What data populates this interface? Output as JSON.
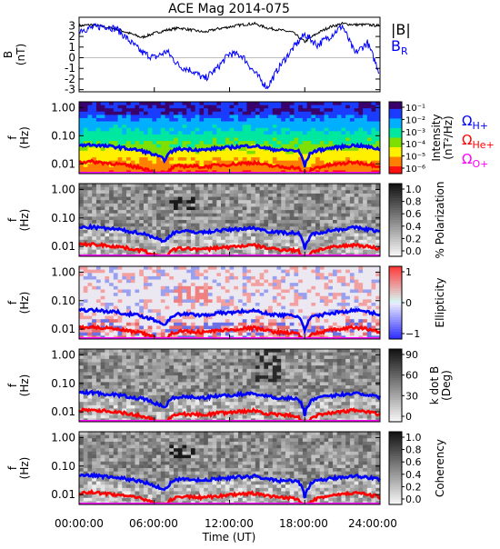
{
  "title": "ACE Mag 2014-075",
  "time_axis": {
    "label": "Time (UT)",
    "ticks": [
      "00:00:00",
      "06:00:00",
      "12:00:00",
      "18:00:00",
      "24:00:00"
    ],
    "range_hours": [
      0,
      24
    ]
  },
  "legend_top": {
    "b_mag": "|B|",
    "b_r_base": "B",
    "b_r_sub": "R"
  },
  "cyclotron_legend": {
    "h": {
      "base": "Ω",
      "sub": "H+",
      "color": "#0000ff"
    },
    "he": {
      "base": "Ω",
      "sub": "He+",
      "color": "#ff0000"
    },
    "o": {
      "base": "Ω",
      "sub": "O+",
      "color": "#ff00ff"
    }
  },
  "freq_ylabel": {
    "line1": "f",
    "line2": "(Hz)"
  },
  "freq_ticks": [
    "1.00",
    "0.10",
    "0.01"
  ],
  "chart_data": [
    {
      "type": "line",
      "panel": "magnetic-field",
      "ylabel": {
        "line1": "B",
        "line2": "(nT)"
      },
      "yticks": [
        "3",
        "2",
        "1",
        "0",
        "-1",
        "-2",
        "-3"
      ],
      "ylim": [
        -3.2,
        3.8
      ],
      "x": [
        0,
        1,
        2,
        3,
        4,
        5,
        6,
        7,
        8,
        9,
        10,
        11,
        12,
        13,
        14,
        15,
        16,
        17,
        18,
        19,
        20,
        21,
        22,
        23,
        24
      ],
      "series": [
        {
          "name": "|B|",
          "color": "#000000",
          "values": [
            3.0,
            3.1,
            2.9,
            2.7,
            2.3,
            1.9,
            2.3,
            2.6,
            2.8,
            2.6,
            2.4,
            2.7,
            2.9,
            3.1,
            3.2,
            2.8,
            2.6,
            2.4,
            1.5,
            2.3,
            2.9,
            3.2,
            3.1,
            3.1,
            3.0
          ]
        },
        {
          "name": "B_R",
          "color": "#0000ff",
          "values": [
            2.6,
            2.8,
            3.0,
            2.7,
            1.6,
            0.5,
            0.0,
            0.6,
            -0.8,
            -1.2,
            -2.0,
            -1.0,
            0.4,
            0.2,
            -1.4,
            -2.8,
            -0.8,
            0.8,
            2.2,
            1.2,
            2.0,
            3.0,
            0.4,
            1.4,
            -1.5
          ]
        }
      ]
    },
    {
      "type": "heatmap",
      "panel": "power-spectrum",
      "colorbar_label": {
        "line1": "Intensity",
        "line2": "(nT²/Hz)"
      },
      "colorbar_ticks": [
        "10⁻¹",
        "10⁻²",
        "10⁻³",
        "10⁻⁴",
        "10⁻⁵",
        "10⁻⁶"
      ],
      "colors": [
        "#3a006b",
        "#1a3cff",
        "#00b0ff",
        "#00e8a0",
        "#7ee000",
        "#fff000",
        "#ff8000",
        "#ff1010"
      ]
    },
    {
      "type": "heatmap",
      "panel": "polarization",
      "colorbar_label": "% Polarization",
      "colorbar_ticks": [
        "1.0",
        "0.8",
        "0.6",
        "0.4",
        "0.2",
        "0.0"
      ]
    },
    {
      "type": "heatmap",
      "panel": "ellipticity",
      "colorbar_label": "Ellipticity",
      "colorbar_ticks": [
        "1",
        "0",
        "−1"
      ]
    },
    {
      "type": "heatmap",
      "panel": "k-dot-b",
      "colorbar_label": {
        "line1": "k dot B",
        "line2": "(Deg)"
      },
      "colorbar_ticks": [
        "90",
        "60",
        "30",
        "0"
      ]
    },
    {
      "type": "heatmap",
      "panel": "coherency",
      "colorbar_label": "Coherency",
      "colorbar_ticks": [
        "1.0",
        "0.8",
        "0.6",
        "0.4",
        "0.2",
        "0.0"
      ]
    },
    {
      "type": "line",
      "panel": "cyclotron-frequencies",
      "x": [
        0,
        1,
        2,
        3,
        4,
        5,
        6,
        6.8,
        7.5,
        8,
        9,
        10,
        11,
        12,
        13,
        14,
        15,
        16,
        17,
        17.5,
        18,
        18.5,
        19,
        20,
        21,
        22,
        23,
        24
      ],
      "series": [
        {
          "name": "Ω H+",
          "color": "#0000ff",
          "values": [
            0.046,
            0.048,
            0.043,
            0.04,
            0.034,
            0.029,
            0.021,
            0.014,
            0.03,
            0.034,
            0.033,
            0.031,
            0.036,
            0.038,
            0.042,
            0.044,
            0.035,
            0.031,
            0.03,
            0.028,
            0.008,
            0.025,
            0.03,
            0.036,
            0.041,
            0.046,
            0.04,
            0.033
          ]
        },
        {
          "name": "Ω He+",
          "color": "#ff0000",
          "values": [
            0.0115,
            0.012,
            0.011,
            0.01,
            0.0085,
            0.0072,
            0.0052,
            0.0035,
            0.0075,
            0.0085,
            0.0083,
            0.0078,
            0.009,
            0.0095,
            0.0105,
            0.011,
            0.0088,
            0.0078,
            0.0075,
            0.007,
            0.002,
            0.0062,
            0.0075,
            0.009,
            0.0102,
            0.0115,
            0.01,
            0.0082
          ]
        },
        {
          "name": "Ω O+",
          "color": "#ff00ff",
          "values": [
            0.0029,
            0.003,
            0.0027,
            0.0025,
            0.0021,
            0.0018,
            0.0013,
            0.0009,
            0.0019,
            0.0021,
            0.0021,
            0.002,
            0.0023,
            0.0024,
            0.0026,
            0.0028,
            0.0022,
            0.002,
            0.0019,
            0.0018,
            0.0005,
            0.0016,
            0.0019,
            0.0023,
            0.0026,
            0.0029,
            0.0025,
            0.002
          ]
        }
      ]
    }
  ]
}
